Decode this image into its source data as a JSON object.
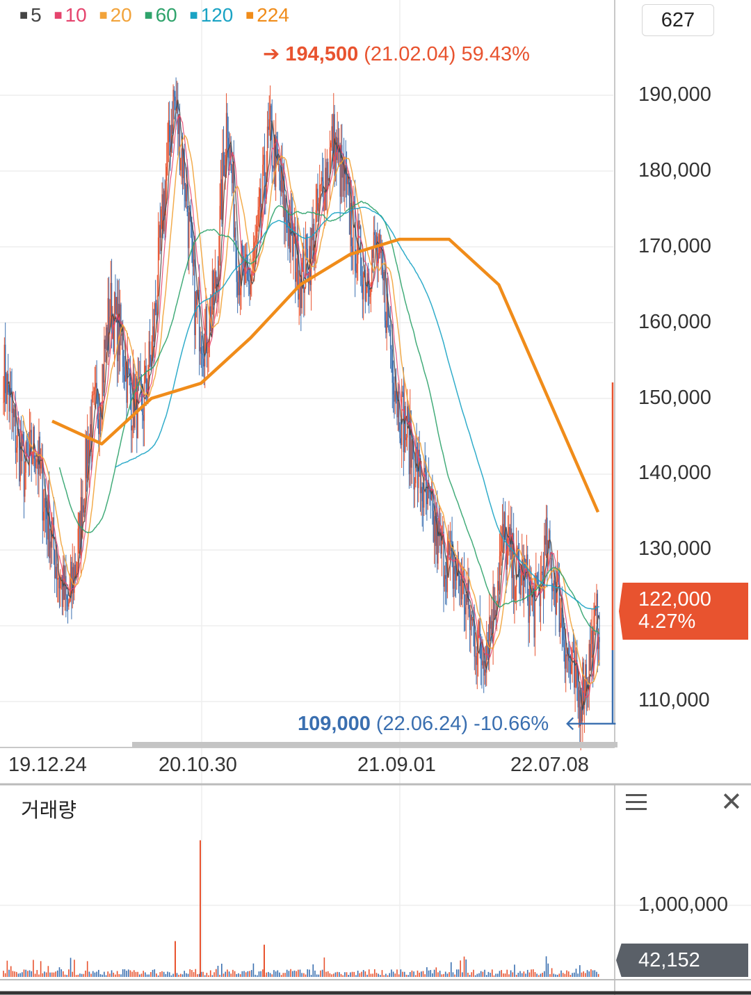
{
  "colors": {
    "up": "#e8532f",
    "down": "#3a6fb0",
    "ma5": "#444444",
    "ma10": "#e5446d",
    "ma20": "#f2a33a",
    "ma60": "#2fa36b",
    "ma120": "#1aa3c4",
    "ma224": "#f08c1a",
    "grid": "#eeeeee",
    "axis": "#c8c8c8",
    "high": "#e8532f",
    "low": "#3a6fb0"
  },
  "legend": [
    {
      "label": "5",
      "color": "#444444"
    },
    {
      "label": "10",
      "color": "#e5446d"
    },
    {
      "label": "20",
      "color": "#f2a33a"
    },
    {
      "label": "60",
      "color": "#2fa36b"
    },
    {
      "label": "120",
      "color": "#1aa3c4"
    },
    {
      "label": "224",
      "color": "#f08c1a"
    }
  ],
  "count_box": "627",
  "high": {
    "arrow": "➔",
    "price": "194,500",
    "date": "(21.02.04)",
    "pct": "59.43%"
  },
  "low": {
    "price": "109,000",
    "date": "(22.06.24)",
    "pct": "-10.66%",
    "arrow": "🡐"
  },
  "current": {
    "price": "122,000",
    "pct": "4.27%"
  },
  "volume": {
    "title": "거래량",
    "tick": "1,000,000",
    "current": "42,152"
  },
  "chart_data": {
    "type": "candlestick",
    "x_tick_labels": [
      "19.12.24",
      "20.10.30",
      "21.09.01",
      "22.07.08"
    ],
    "y_ticks": [
      110000,
      120000,
      130000,
      140000,
      150000,
      160000,
      170000,
      180000,
      190000
    ],
    "y_tick_labels": [
      "110,000",
      "130,000",
      "140,000",
      "150,000",
      "160,000",
      "170,000",
      "180,000",
      "190,000"
    ],
    "ylim": [
      104000,
      201000
    ],
    "series": [
      {
        "name": "5",
        "values": [
          154000,
          145000,
          128000,
          150000,
          162000,
          155000,
          172000,
          180000,
          158000,
          172000,
          185000,
          178000,
          168000,
          180000,
          172000,
          149000,
          133000,
          122000,
          130000,
          126000,
          113000,
          122000
        ]
      },
      {
        "name": "224",
        "values": [
          147000,
          144000,
          150000,
          152000,
          158000,
          165000,
          169000,
          171000,
          171000,
          165000,
          150000,
          135000
        ]
      }
    ],
    "price_path": [
      154000,
      146000,
      140000,
      144000,
      135000,
      128000,
      122000,
      130000,
      145000,
      150000,
      162000,
      158000,
      150000,
      148000,
      157000,
      175000,
      190000,
      180000,
      162000,
      158000,
      165000,
      188000,
      168000,
      164000,
      172000,
      185000,
      178000,
      171000,
      166000,
      170000,
      178000,
      184000,
      178000,
      171000,
      166000,
      170000,
      162000,
      150000,
      145000,
      140000,
      135000,
      130000,
      128000,
      126000,
      120000,
      116000,
      122000,
      132000,
      127000,
      126000,
      122000,
      130000,
      125000,
      116000,
      110000,
      115000,
      122000
    ],
    "high_point": {
      "date": "21.02.04",
      "value": 194500
    },
    "low_point": {
      "date": "22.06.24",
      "value": 109000
    },
    "current_value": 122000,
    "volume_tick": 1000000,
    "volume_current": 42152,
    "volume_spike_value": 1800000
  }
}
